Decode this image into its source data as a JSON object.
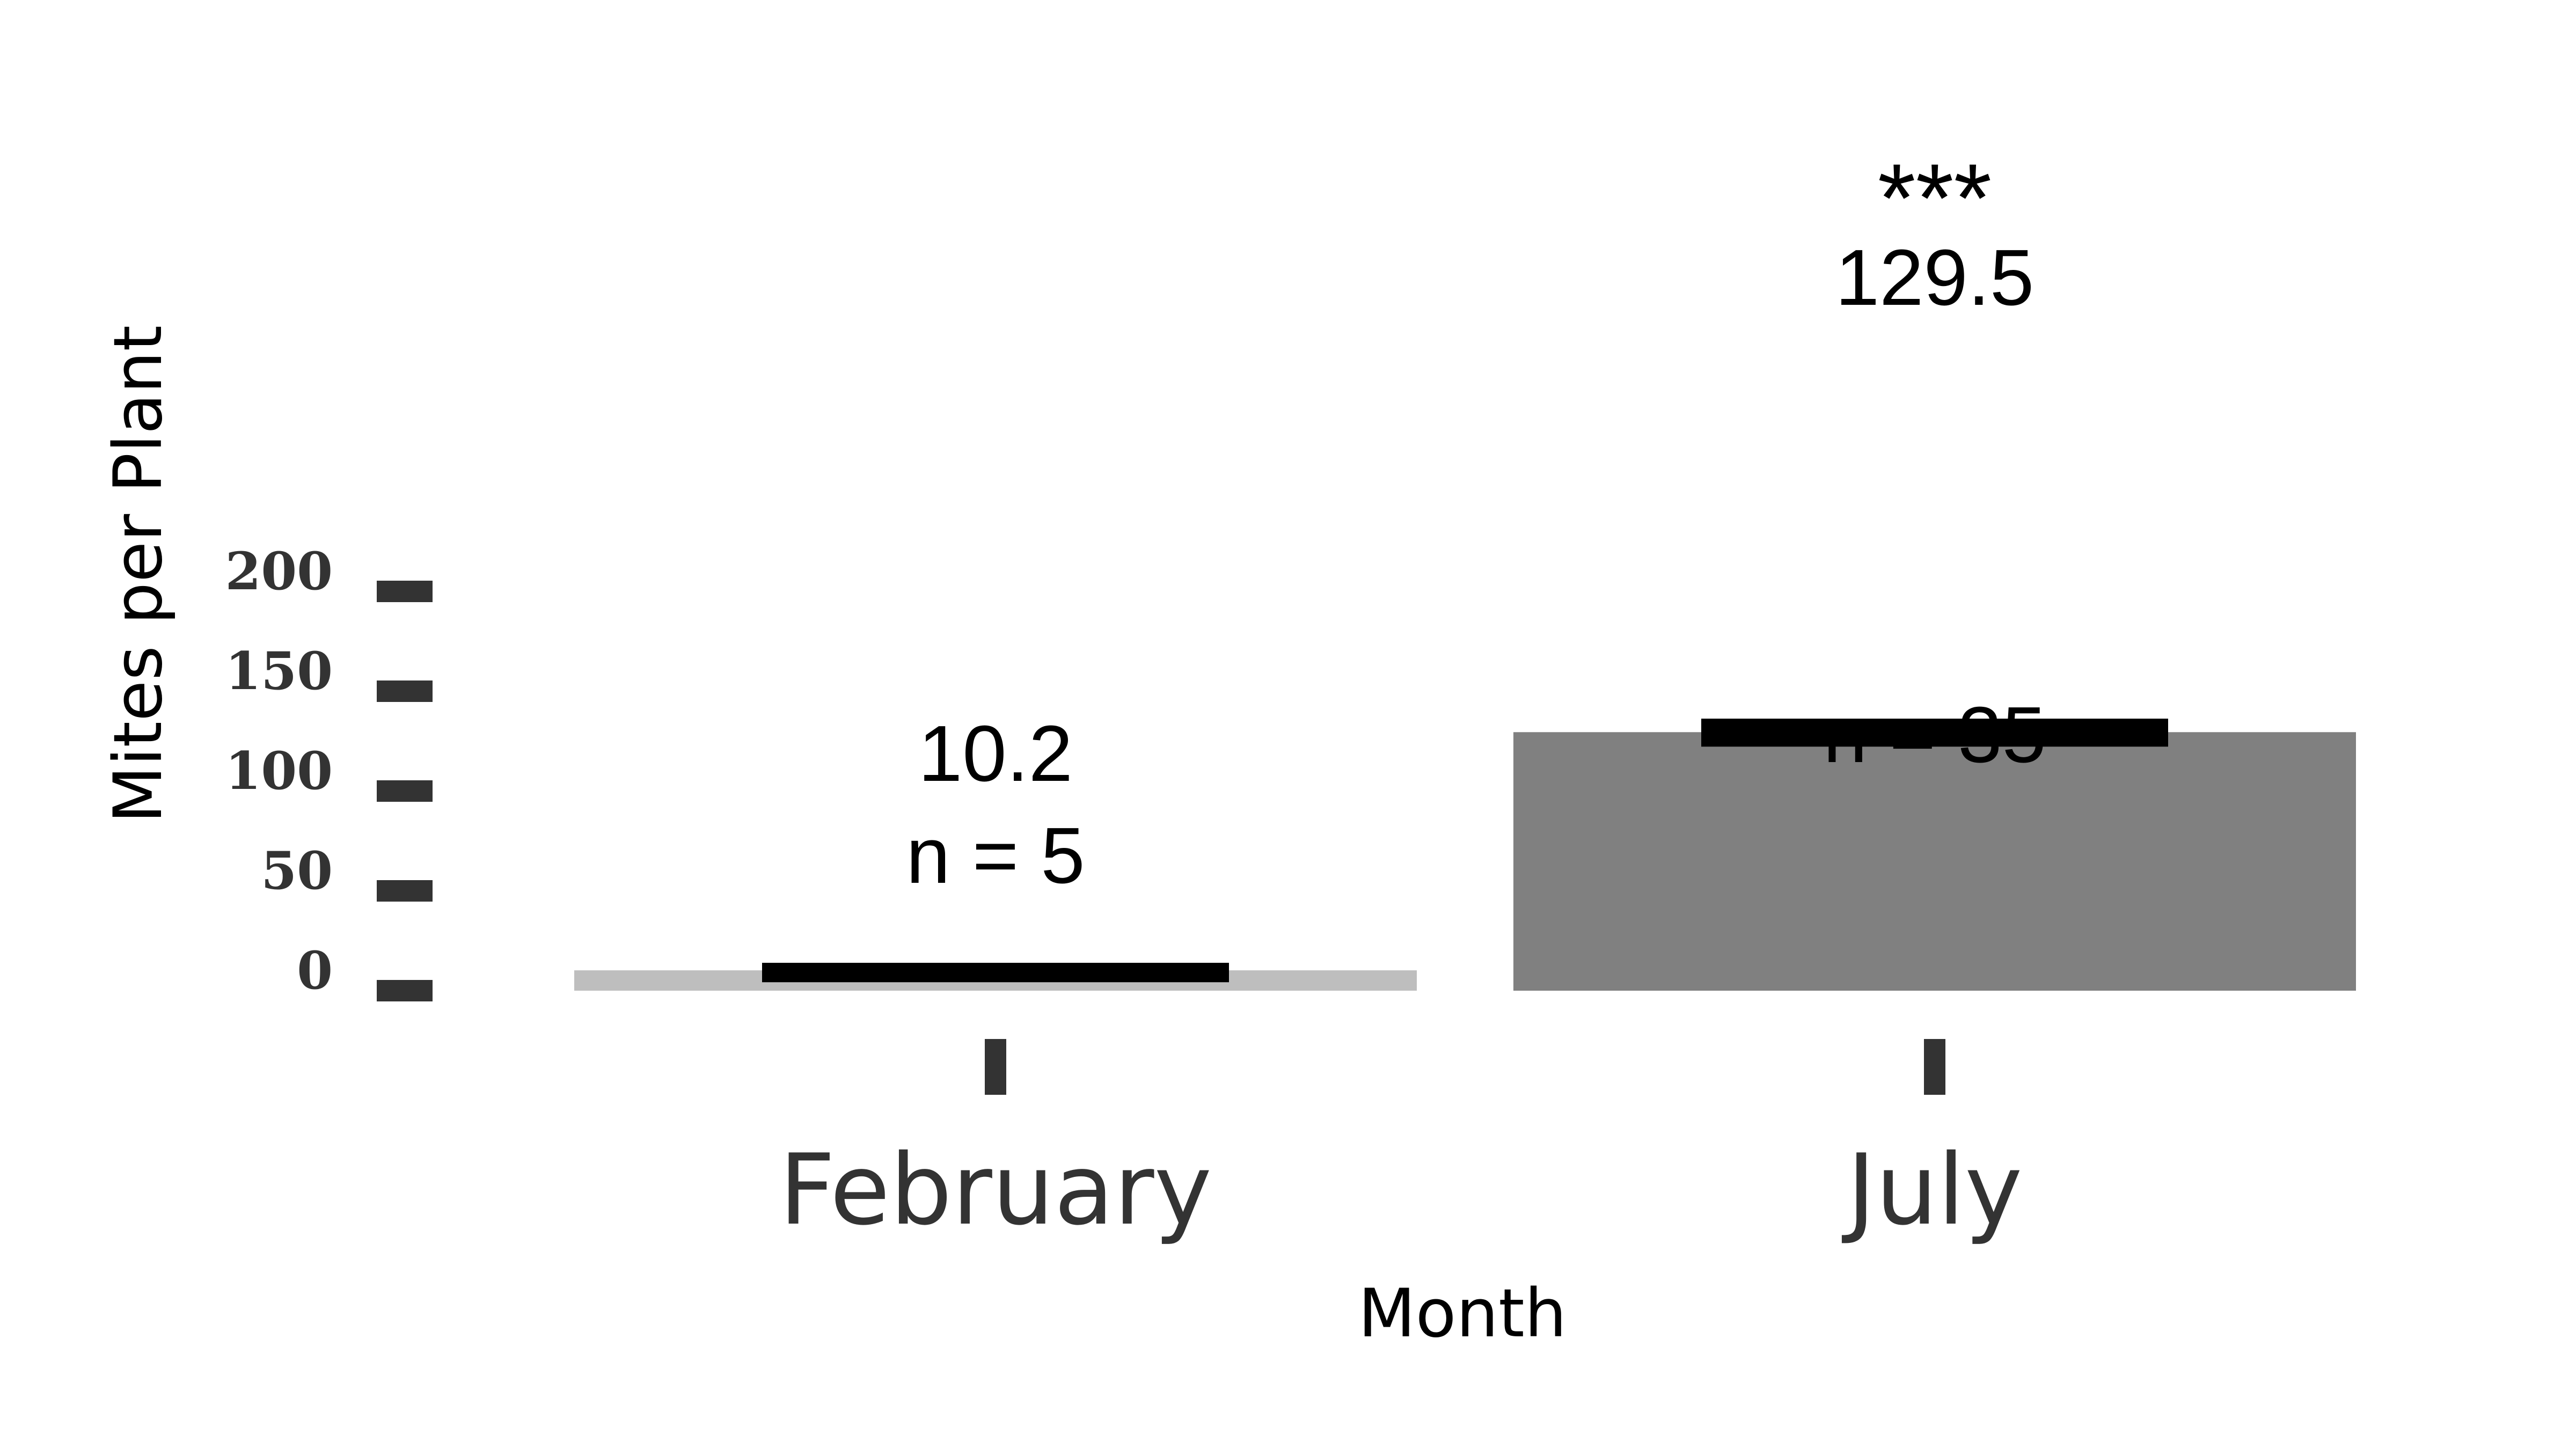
{
  "chart_data": {
    "type": "bar",
    "xlabel": "Month",
    "ylabel": "Mites per Plant",
    "ylim": [
      0,
      200
    ],
    "yticks": [
      0,
      50,
      100,
      150,
      200
    ],
    "grid": false,
    "legend": "none",
    "categories": [
      "February",
      "July"
    ],
    "values": [
      10.2,
      129.5
    ],
    "error": [
      {
        "low": 8.0,
        "high": 10.2
      },
      {
        "low": 126.0,
        "high": 132.5
      }
    ],
    "annotations": [
      {
        "mean_label": "10.2",
        "n_label": "n = 5",
        "significance": ""
      },
      {
        "mean_label": "129.5",
        "n_label": "n = 35",
        "significance": "***"
      }
    ],
    "colors": {
      "bars": [
        "#bebebe",
        "#808080"
      ],
      "error_bar": "#000000",
      "ticks": "#333333"
    }
  }
}
